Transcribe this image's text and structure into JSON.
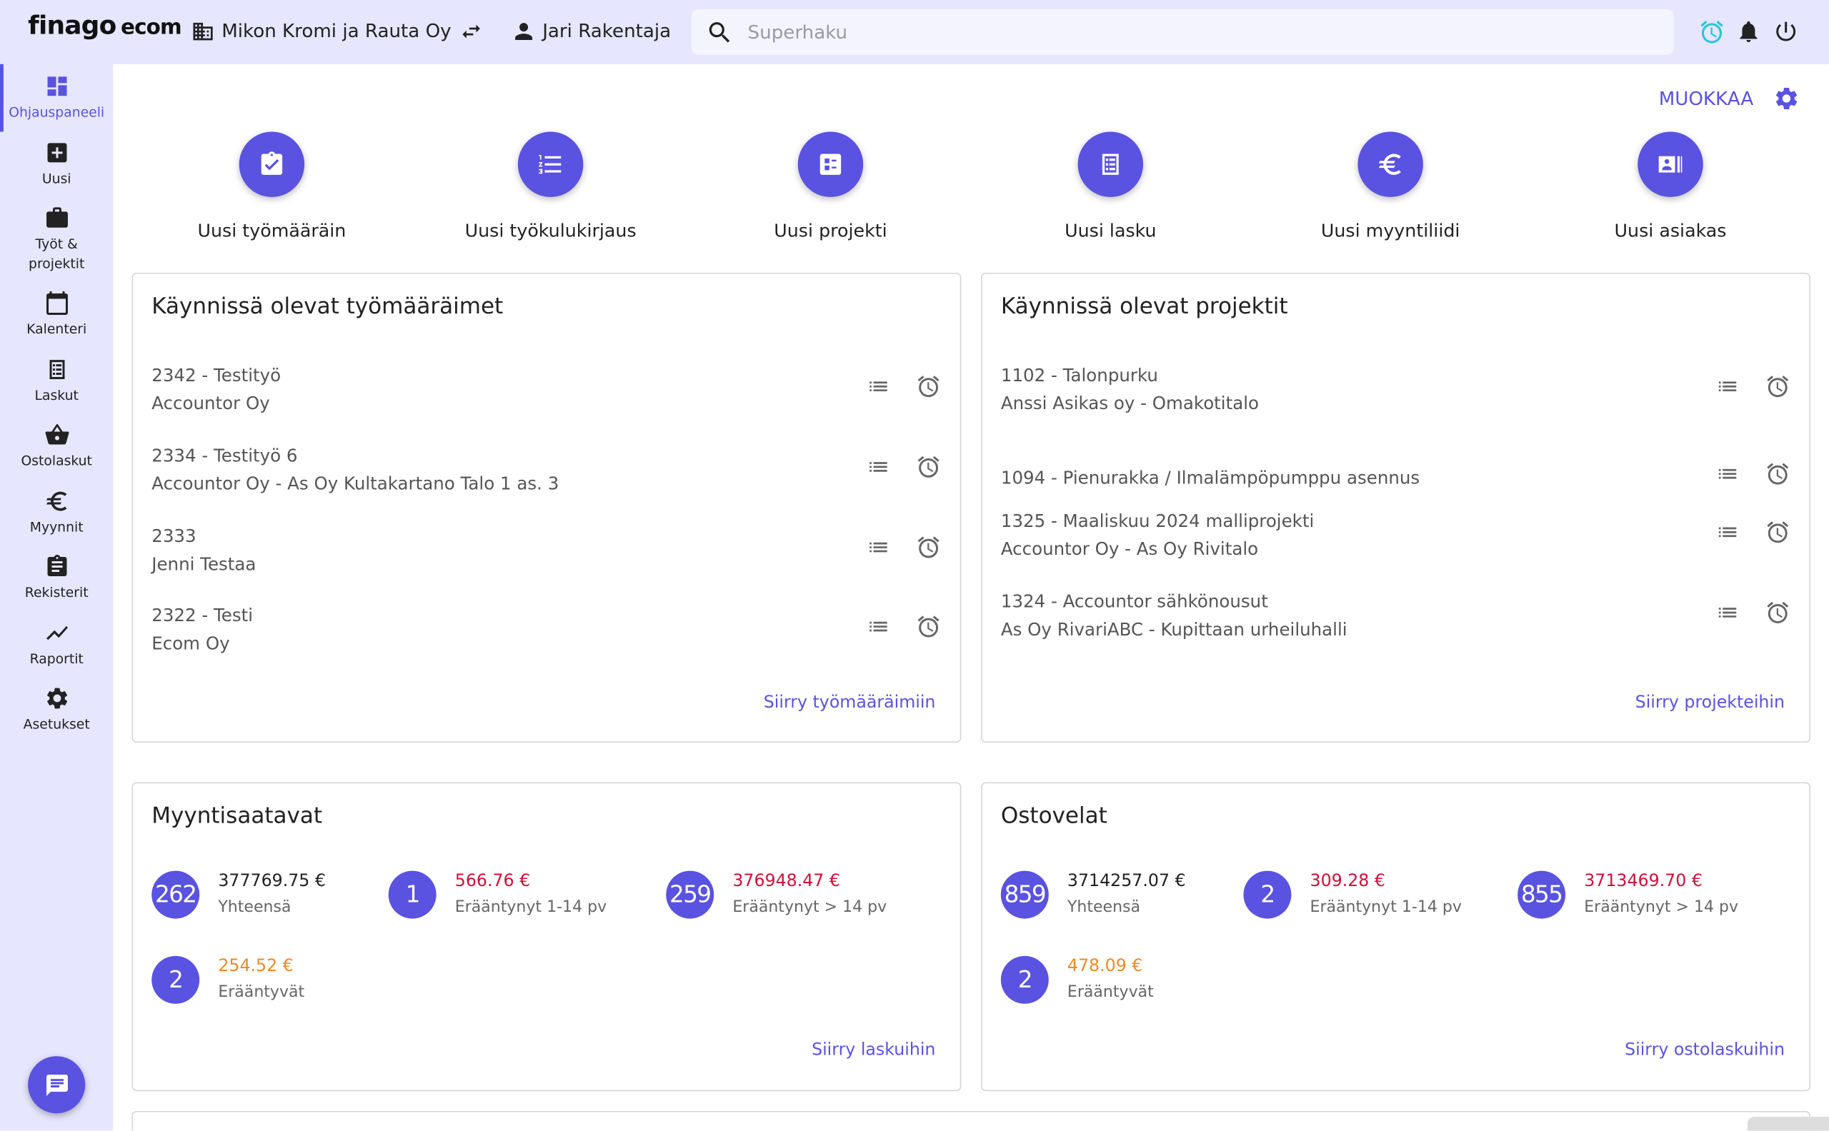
{
  "header": {
    "logo": "finago",
    "logo_suffix": "ecom",
    "company": "Mikon Kromi ja Rauta Oy",
    "user": "Jari Rakentaja",
    "search_placeholder": "Superhaku"
  },
  "colors": {
    "accent": "#5a52e0",
    "overdue": "#d0103a",
    "due": "#f08a24",
    "timer": "#26c6da"
  },
  "sidebar": {
    "items": [
      {
        "label": "Ohjauspaneeli",
        "icon": "dashboard-icon",
        "active": true
      },
      {
        "label": "Uusi",
        "icon": "plus-box-icon"
      },
      {
        "label": "Työt & projektit",
        "icon": "briefcase-icon"
      },
      {
        "label": "Kalenteri",
        "icon": "calendar-icon"
      },
      {
        "label": "Laskut",
        "icon": "invoice-icon"
      },
      {
        "label": "Ostolaskut",
        "icon": "basket-icon"
      },
      {
        "label": "Myynnit",
        "icon": "euro-icon"
      },
      {
        "label": "Rekisterit",
        "icon": "clipboard-icon"
      },
      {
        "label": "Raportit",
        "icon": "chart-line-icon"
      },
      {
        "label": "Asetukset",
        "icon": "gear-icon"
      }
    ]
  },
  "main": {
    "edit_label": "MUOKKAA",
    "quick_actions": [
      {
        "label": "Uusi työmääräin",
        "icon": "clipboard-check-icon"
      },
      {
        "label": "Uusi työkulukirjaus",
        "icon": "list-numbered-icon"
      },
      {
        "label": "Uusi projekti",
        "icon": "project-icon"
      },
      {
        "label": "Uusi lasku",
        "icon": "invoice-icon"
      },
      {
        "label": "Uusi myyntiliidi",
        "icon": "euro-icon"
      },
      {
        "label": "Uusi asiakas",
        "icon": "contact-card-icon"
      }
    ],
    "work_orders": {
      "title": "Käynnissä olevat työmääräimet",
      "items": [
        {
          "line1": "2342 - Testityö",
          "line2": "Accountor Oy"
        },
        {
          "line1": "2334 - Testityö 6",
          "line2": "Accountor Oy - As Oy Kultakartano Talo 1 as. 3"
        },
        {
          "line1": "2333",
          "line2": "Jenni Testaa"
        },
        {
          "line1": "2322 - Testi",
          "line2": "Ecom Oy"
        }
      ],
      "link": "Siirry työmääräimiin"
    },
    "projects": {
      "title": "Käynnissä olevat projektit",
      "items": [
        {
          "line1": "1102 - Talonpurku",
          "line2": "Anssi Asikas oy - Omakotitalo"
        },
        {
          "line1": "1094 - Pienurakka / Ilmalämpöpumppu asennus",
          "line2": ""
        },
        {
          "line1": "1325 - Maaliskuu 2024 malliprojekti",
          "line2": "Accountor Oy - As Oy Rivitalo"
        },
        {
          "line1": "1324 - Accountor sähkönousut",
          "line2": "As Oy RivariABC - Kupittaan urheiluhalli"
        }
      ],
      "link": "Siirry projekteihin"
    },
    "receivables": {
      "title": "Myyntisaatavat",
      "stats": [
        {
          "count": "262",
          "amount": "377769.75 €",
          "label": "Yhteensä",
          "tone": "normal"
        },
        {
          "count": "1",
          "amount": "566.76 €",
          "label": "Erääntynyt 1-14 pv",
          "tone": "red"
        },
        {
          "count": "259",
          "amount": "376948.47 €",
          "label": "Erääntynyt > 14 pv",
          "tone": "red"
        },
        {
          "count": "2",
          "amount": "254.52 €",
          "label": "Erääntyvät",
          "tone": "orange"
        }
      ],
      "link": "Siirry laskuihin"
    },
    "payables": {
      "title": "Ostovelat",
      "stats": [
        {
          "count": "859",
          "amount": "3714257.07 €",
          "label": "Yhteensä",
          "tone": "normal"
        },
        {
          "count": "2",
          "amount": "309.28 €",
          "label": "Erääntynyt 1-14 pv",
          "tone": "red"
        },
        {
          "count": "855",
          "amount": "3713469.70 €",
          "label": "Erääntynyt > 14 pv",
          "tone": "red"
        },
        {
          "count": "2",
          "amount": "478.09 €",
          "label": "Erääntyvät",
          "tone": "orange"
        }
      ],
      "link": "Siirry ostolaskuihin"
    }
  }
}
